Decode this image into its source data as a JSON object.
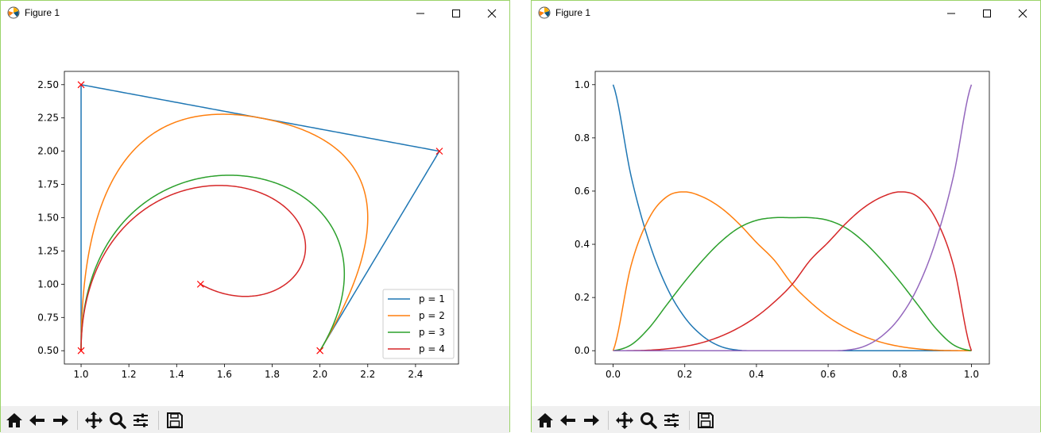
{
  "windows": [
    {
      "title": "Figure 1",
      "controls": {
        "minimize": "minimize",
        "maximize": "maximize",
        "close": "close"
      }
    },
    {
      "title": "Figure 1",
      "controls": {
        "minimize": "minimize",
        "maximize": "maximize",
        "close": "close"
      }
    }
  ],
  "toolbar": {
    "buttons": [
      "home-icon",
      "back-arrow-icon",
      "forward-arrow-icon",
      "pan-icon",
      "zoom-icon",
      "subplots-icon",
      "save-icon"
    ]
  },
  "colors": {
    "blue": "#1f77b4",
    "orange": "#ff7f0e",
    "green": "#2ca02c",
    "red": "#d62728",
    "purple": "#9467bd",
    "marker": "#ff0000",
    "window_border": "#9bd36a",
    "toolbar_bg": "#f0f0f0"
  },
  "chart_data": [
    {
      "type": "line",
      "title": "",
      "xlabel": "",
      "ylabel": "",
      "xlim": [
        0.93,
        2.58
      ],
      "ylim": [
        0.4,
        2.6
      ],
      "xticks": [
        1.0,
        1.2,
        1.4,
        1.6,
        1.8,
        2.0,
        2.2,
        2.4
      ],
      "xtick_labels": [
        "1.0",
        "1.2",
        "1.4",
        "1.6",
        "1.8",
        "2.0",
        "2.2",
        "2.4"
      ],
      "yticks": [
        0.5,
        0.75,
        1.0,
        1.25,
        1.5,
        1.75,
        2.0,
        2.25,
        2.5
      ],
      "ytick_labels": [
        "0.50",
        "0.75",
        "1.00",
        "1.25",
        "1.50",
        "1.75",
        "2.00",
        "2.25",
        "2.50"
      ],
      "grid": false,
      "legend_position": "lower-right",
      "control_points": {
        "x": [
          1.0,
          1.0,
          2.5,
          2.0,
          1.5
        ],
        "y": [
          0.5,
          2.5,
          2.0,
          0.5,
          1.0
        ]
      },
      "series": [
        {
          "name": "p = 1",
          "color": "#1f77b4",
          "degree": 1
        },
        {
          "name": "p = 2",
          "color": "#ff7f0e",
          "degree": 2
        },
        {
          "name": "p = 3",
          "color": "#2ca02c",
          "degree": 3
        },
        {
          "name": "p = 4",
          "color": "#d62728",
          "degree": 4
        }
      ]
    },
    {
      "type": "line",
      "title": "",
      "xlabel": "",
      "ylabel": "",
      "xlim": [
        -0.05,
        1.05
      ],
      "ylim": [
        -0.05,
        1.05
      ],
      "xticks": [
        0.0,
        0.2,
        0.4,
        0.6,
        0.8,
        1.0
      ],
      "xtick_labels": [
        "0.0",
        "0.2",
        "0.4",
        "0.6",
        "0.8",
        "1.0"
      ],
      "yticks": [
        0.0,
        0.2,
        0.4,
        0.6,
        0.8,
        1.0
      ],
      "ytick_labels": [
        "0.0",
        "0.2",
        "0.4",
        "0.6",
        "0.8",
        "1.0"
      ],
      "grid": false,
      "x": [
        0.0,
        0.05,
        0.1,
        0.15,
        0.2,
        0.25,
        0.3,
        0.35,
        0.4,
        0.45,
        0.5,
        0.55,
        0.6,
        0.65,
        0.7,
        0.75,
        0.8,
        0.85,
        0.9,
        0.95,
        1.0
      ],
      "series": [
        {
          "color": "#1f77b4",
          "values": [
            1.0,
            0.657,
            0.41,
            0.238,
            0.125,
            0.055,
            0.016,
            0.002,
            0.0,
            0.0,
            0.0,
            0.0,
            0.0,
            0.0,
            0.0,
            0.0,
            0.0,
            0.0,
            0.0,
            0.0,
            0.0
          ]
        },
        {
          "color": "#ff7f0e",
          "values": [
            0.0,
            0.32,
            0.497,
            0.579,
            0.597,
            0.578,
            0.538,
            0.479,
            0.407,
            0.34,
            0.25,
            0.183,
            0.128,
            0.086,
            0.054,
            0.031,
            0.016,
            0.007,
            0.002,
            0.0003,
            0.0
          ]
        },
        {
          "color": "#2ca02c",
          "values": [
            0.0,
            0.022,
            0.085,
            0.173,
            0.26,
            0.34,
            0.409,
            0.461,
            0.49,
            0.5,
            0.5,
            0.5,
            0.49,
            0.461,
            0.409,
            0.34,
            0.26,
            0.173,
            0.085,
            0.022,
            0.0
          ]
        },
        {
          "color": "#d62728",
          "values": [
            0.0,
            0.0003,
            0.002,
            0.007,
            0.016,
            0.031,
            0.054,
            0.086,
            0.128,
            0.183,
            0.25,
            0.34,
            0.407,
            0.479,
            0.538,
            0.578,
            0.597,
            0.579,
            0.497,
            0.32,
            0.0
          ]
        },
        {
          "color": "#9467bd",
          "values": [
            0.0,
            0.0,
            0.0,
            0.0,
            0.0,
            0.0,
            0.0,
            0.0,
            0.0,
            0.0,
            0.0,
            0.0,
            0.0,
            0.002,
            0.016,
            0.055,
            0.125,
            0.238,
            0.41,
            0.657,
            1.0
          ]
        }
      ]
    }
  ]
}
